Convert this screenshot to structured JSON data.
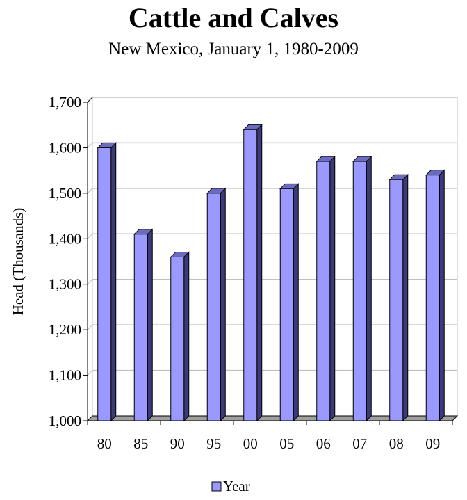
{
  "chart_data": {
    "type": "bar",
    "title": "Cattle and Calves",
    "subtitle": "New Mexico, January 1, 1980-2009",
    "xlabel": "",
    "ylabel": "Head (Thousands)",
    "ylim": [
      1000,
      1700
    ],
    "yticks": [
      1000,
      1100,
      1200,
      1300,
      1400,
      1500,
      1600,
      1700
    ],
    "ytick_labels": [
      "1,000",
      "1,100",
      "1,200",
      "1,300",
      "1,400",
      "1,500",
      "1,600",
      "1,700"
    ],
    "categories": [
      "80",
      "85",
      "90",
      "95",
      "00",
      "05",
      "06",
      "07",
      "08",
      "09"
    ],
    "series": [
      {
        "name": "Year",
        "values": [
          1600,
          1410,
          1360,
          1500,
          1640,
          1510,
          1570,
          1570,
          1530,
          1540
        ]
      }
    ],
    "grid": true,
    "legend_position": "bottom",
    "colors": {
      "bar_front": "#9999ff",
      "bar_side": "#3b3b7a",
      "bar_top": "#6c6cbe",
      "grid": "#c0c0c0",
      "floor": "#a0a0a0"
    }
  }
}
